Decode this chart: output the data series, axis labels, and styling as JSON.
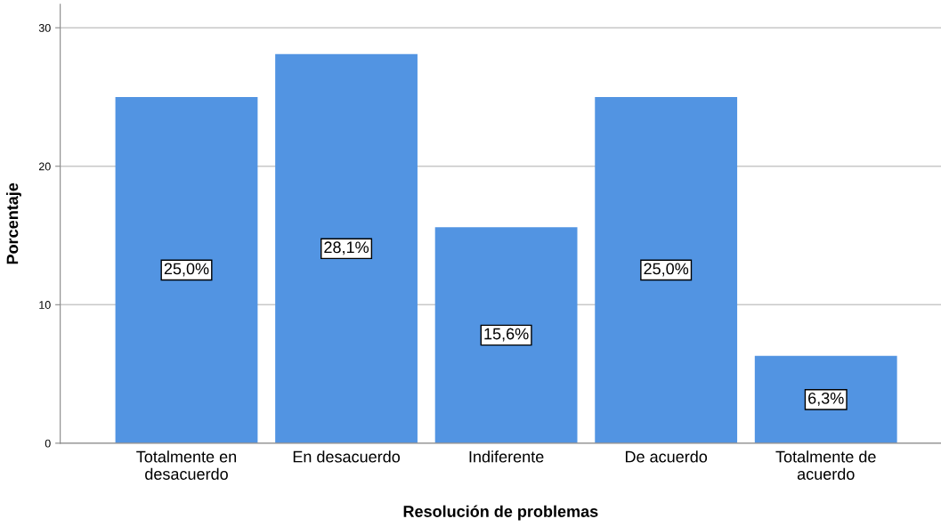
{
  "chart_data": {
    "type": "bar",
    "xlabel": "Resolución de problemas",
    "ylabel": "Porcentaje",
    "categories": [
      "Totalmente en\ndesacuerdo",
      "En desacuerdo",
      "Indiferente",
      "De acuerdo",
      "Totalmente de\nacuerdo"
    ],
    "values": [
      25.0,
      28.1,
      15.6,
      25.0,
      6.3
    ],
    "value_labels": [
      "25,0%",
      "28,1%",
      "15,6%",
      "25,0%",
      "6,3%"
    ],
    "color": "#5294e2",
    "ylim": [
      0,
      31.7
    ],
    "yticks": [
      0,
      10,
      20,
      30
    ],
    "grid": "y"
  }
}
